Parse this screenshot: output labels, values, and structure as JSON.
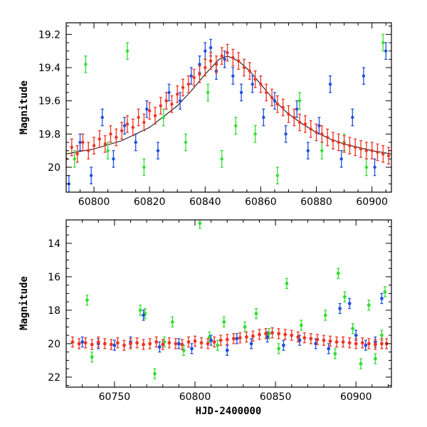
{
  "chart_data": [
    {
      "type": "scatter",
      "panel": "top",
      "title": "",
      "xlabel": "",
      "ylabel": "Magnitude",
      "xlim": [
        60790,
        60907
      ],
      "ylim": [
        20.15,
        19.13
      ],
      "y_inverted": true,
      "x_ticks": [
        60800,
        60820,
        60840,
        60860,
        60880,
        60900
      ],
      "y_ticks": [
        19.2,
        19.4,
        19.6,
        19.8,
        20
      ],
      "x_tick_labels": [
        "60800",
        "60820",
        "60840",
        "60860",
        "60880",
        "60900"
      ],
      "y_tick_labels": [
        "19.2",
        "19.4",
        "19.6",
        "19.8",
        "20"
      ],
      "model_curve": {
        "color": "#000000",
        "shape": "peaked light curve",
        "x": [
          60790,
          60800,
          60810,
          60820,
          60830,
          60835,
          60840,
          60845,
          60848,
          60852,
          60856,
          60860,
          60865,
          60870,
          60875,
          60880,
          60885,
          60890,
          60895,
          60900,
          60907
        ],
        "y": [
          19.92,
          19.89,
          19.84,
          19.76,
          19.63,
          19.54,
          19.44,
          19.35,
          19.33,
          19.36,
          19.42,
          19.5,
          19.6,
          19.68,
          19.74,
          19.79,
          19.83,
          19.86,
          19.88,
          19.9,
          19.92
        ]
      },
      "series": [
        {
          "color": "#1f4fe0",
          "x": [
            60791,
            60795,
            60799,
            60803,
            60807,
            60811,
            60815,
            60819,
            60823,
            60827,
            60831,
            60835,
            60838,
            60840,
            60842,
            60844,
            60847,
            60850,
            60853,
            60857,
            60861,
            60865,
            60869,
            60873,
            60877,
            60881,
            60885,
            60889,
            60893,
            60897,
            60901,
            60905
          ],
          "y": [
            20.1,
            19.85,
            20.05,
            19.7,
            19.95,
            19.75,
            19.85,
            19.65,
            19.9,
            19.55,
            19.6,
            19.45,
            19.38,
            19.3,
            19.28,
            19.42,
            19.35,
            19.45,
            19.55,
            19.5,
            19.7,
            19.6,
            19.8,
            19.65,
            19.9,
            19.75,
            19.5,
            19.95,
            19.7,
            19.45,
            20.0,
            19.3
          ]
        },
        {
          "color": "#33dd33",
          "x": [
            60793,
            60797,
            60805,
            60812,
            60818,
            60825,
            60833,
            60841,
            60846,
            60851,
            60858,
            60866,
            60874,
            60882,
            60890,
            60898,
            60904
          ],
          "y": [
            19.95,
            19.38,
            19.9,
            19.3,
            20.0,
            19.7,
            19.85,
            19.55,
            19.95,
            19.75,
            19.8,
            20.05,
            19.6,
            19.9,
            19.85,
            20.0,
            19.25
          ]
        },
        {
          "color": "#ee3322",
          "x": [
            60790,
            60792,
            60794,
            60796,
            60798,
            60800,
            60802,
            60804,
            60806,
            60808,
            60810,
            60812,
            60814,
            60816,
            60818,
            60820,
            60822,
            60824,
            60826,
            60828,
            60830,
            60832,
            60834,
            60836,
            60838,
            60840,
            60842,
            60844,
            60846,
            60848,
            60850,
            60852,
            60854,
            60856,
            60858,
            60860,
            60862,
            60864,
            60866,
            60868,
            60870,
            60872,
            60874,
            60876,
            60878,
            60880,
            60882,
            60884,
            60886,
            60888,
            60890,
            60892,
            60894,
            60896,
            60898,
            60900,
            60902,
            60904,
            60906
          ],
          "y": [
            19.95,
            19.88,
            19.92,
            19.85,
            19.9,
            19.87,
            19.83,
            19.86,
            19.8,
            19.82,
            19.78,
            19.74,
            19.76,
            19.7,
            19.73,
            19.66,
            19.69,
            19.63,
            19.6,
            19.62,
            19.56,
            19.52,
            19.5,
            19.46,
            19.44,
            19.4,
            19.36,
            19.38,
            19.33,
            19.31,
            19.34,
            19.36,
            19.4,
            19.42,
            19.47,
            19.5,
            19.55,
            19.58,
            19.62,
            19.64,
            19.68,
            19.7,
            19.73,
            19.74,
            19.77,
            19.79,
            19.8,
            19.82,
            19.84,
            19.85,
            19.86,
            19.87,
            19.88,
            19.89,
            19.9,
            19.9,
            19.91,
            19.92,
            19.93
          ]
        }
      ]
    },
    {
      "type": "scatter",
      "panel": "bottom",
      "title": "",
      "xlabel": "HJD-2400000",
      "ylabel": "Magnitude",
      "xlim": [
        60720,
        60922
      ],
      "ylim": [
        22.6,
        12.6
      ],
      "y_inverted": true,
      "x_ticks": [
        60750,
        60800,
        60850,
        60900
      ],
      "y_ticks": [
        14,
        16,
        18,
        20,
        22
      ],
      "x_tick_labels": [
        "60750",
        "60800",
        "60850",
        "60900"
      ],
      "y_tick_labels": [
        "14",
        "16",
        "18",
        "20",
        "22"
      ],
      "series": [
        {
          "color": "#33dd33",
          "x": [
            60733,
            60736,
            60766,
            60769,
            60775,
            60781,
            60786,
            60793,
            60803,
            60809,
            60814,
            60818,
            60831,
            60838,
            60846,
            60852,
            60857,
            60866,
            60881,
            60887,
            60889,
            60893,
            60898,
            60903,
            60908,
            60912,
            60916,
            60918
          ],
          "y": [
            17.4,
            20.8,
            18.0,
            18.2,
            21.8,
            19.9,
            18.7,
            20.4,
            12.8,
            19.6,
            20.1,
            18.7,
            19.0,
            18.2,
            19.4,
            20.3,
            16.4,
            18.9,
            18.3,
            20.6,
            15.8,
            17.2,
            19.1,
            21.2,
            17.7,
            20.9,
            19.5,
            16.9
          ]
        },
        {
          "color": "#1f4fe0",
          "x": [
            60730,
            60740,
            60750,
            60760,
            60768,
            60778,
            60790,
            60798,
            60810,
            60820,
            60826,
            60835,
            60845,
            60855,
            60865,
            60875,
            60883,
            60890,
            60896,
            60900,
            60906,
            60912,
            60916
          ],
          "y": [
            19.9,
            20.0,
            20.1,
            19.9,
            18.3,
            20.2,
            20.0,
            20.3,
            19.8,
            20.4,
            19.7,
            20.0,
            19.6,
            20.1,
            19.8,
            20.0,
            20.3,
            17.9,
            17.6,
            19.5,
            20.1,
            19.9,
            17.3
          ]
        },
        {
          "color": "#ee3322",
          "x": [
            60724,
            60728,
            60732,
            60736,
            60740,
            60744,
            60748,
            60752,
            60756,
            60760,
            60764,
            60768,
            60772,
            60776,
            60780,
            60784,
            60788,
            60792,
            60796,
            60800,
            60804,
            60808,
            60812,
            60816,
            60820,
            60824,
            60828,
            60832,
            60836,
            60840,
            60844,
            60848,
            60852,
            60856,
            60860,
            60864,
            60868,
            60872,
            60876,
            60880,
            60884,
            60888,
            60892,
            60896,
            60900,
            60904,
            60908,
            60912,
            60916,
            60919
          ],
          "y": [
            19.9,
            20.0,
            19.95,
            20.05,
            19.9,
            20.0,
            20.05,
            19.95,
            20.1,
            20.0,
            19.95,
            20.05,
            20.0,
            19.9,
            20.05,
            19.95,
            20.0,
            20.05,
            19.9,
            19.85,
            19.95,
            20.0,
            19.9,
            19.8,
            19.75,
            19.7,
            19.65,
            19.6,
            19.55,
            19.45,
            19.4,
            19.35,
            19.4,
            19.45,
            19.5,
            19.6,
            19.65,
            19.7,
            19.75,
            19.8,
            19.85,
            19.9,
            19.9,
            19.95,
            20.0,
            19.95,
            20.0,
            20.05,
            20.0,
            20.0
          ]
        }
      ]
    }
  ]
}
